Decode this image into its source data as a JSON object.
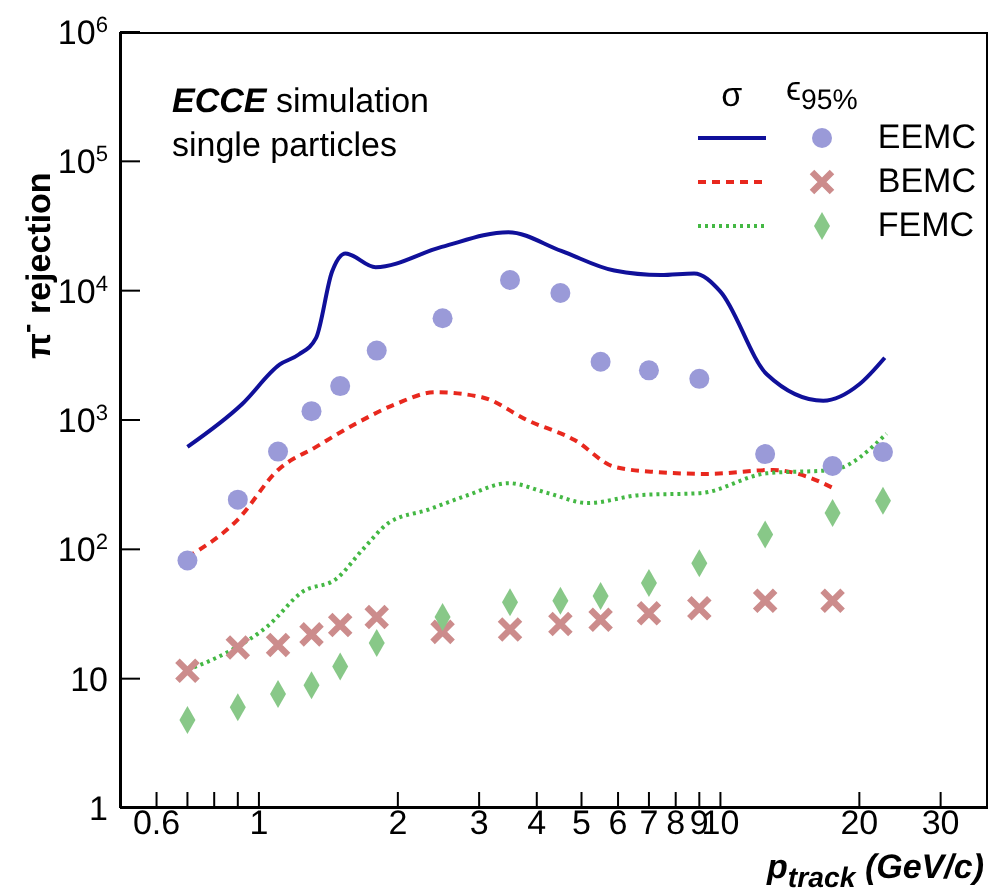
{
  "chart_data": {
    "type": "line",
    "xlabel": "p$_{track}$ (GeV/c)",
    "ylabel": "π$^{-}$ rejection",
    "annotations": [
      "ECCE simulation",
      "single particles",
      "σ",
      "ϵ$_{95%}$"
    ],
    "log": "xy",
    "grid": false,
    "legend": "top right",
    "xlim": [
      0.5,
      38
    ],
    "xticks": [
      0.6,
      {
        "value": 0.7,
        "label": null
      },
      {
        "value": 0.8,
        "label": null
      },
      {
        "value": 0.9,
        "label": null
      },
      1,
      2,
      3,
      4,
      5,
      6,
      7,
      8,
      9,
      10,
      20,
      30
    ],
    "ylim": [
      1,
      1000000
    ],
    "yticks": [
      1,
      10,
      {
        "value": 100,
        "label": "10$^{2}$"
      },
      {
        "value": 1000,
        "label": "10$^{3}$"
      },
      {
        "value": 10000,
        "label": "10$^{4}$"
      },
      {
        "value": 100000,
        "label": "10$^{5}$"
      },
      {
        "value": 1000000,
        "label": "10$^{6}$"
      }
    ],
    "series": [
      {
        "color": "#10109a",
        "line_style": "solid",
        "marker": "none",
        "x": [
          0.7,
          0.92,
          1.11,
          1.22,
          1.33,
          1.44,
          1.54,
          1.79,
          2.49,
          3.47,
          4.52,
          5.89,
          7.43,
          8.77,
          10,
          12.6,
          16.7,
          20,
          22.7
        ],
        "values": [
          620,
          1330,
          2690,
          3210,
          4310,
          14000,
          19400,
          15200,
          21800,
          28300,
          20300,
          14300,
          13200,
          13600,
          9840,
          2260,
          1410,
          1890,
          3030
        ]
      },
      {
        "color": "#e8281e",
        "line_style": "dashed",
        "marker": "none",
        "x": [
          0.7,
          0.9,
          1.1,
          1.33,
          1.62,
          1.98,
          2.41,
          3.04,
          3.83,
          4.83,
          5.89,
          7.16,
          9.36,
          13,
          15.4,
          17.5
        ],
        "values": [
          87,
          170,
          411,
          620,
          935,
          1330,
          1640,
          1500,
          990,
          700,
          435,
          397,
          383,
          411,
          365,
          299
        ]
      },
      {
        "color": "#44b844",
        "line_style": "dotted",
        "marker": "none",
        "x": [
          0.7,
          0.86,
          1.05,
          1.24,
          1.47,
          1.68,
          1.91,
          2.33,
          2.84,
          3.47,
          4.23,
          5.16,
          6.71,
          9.04,
          12.6,
          17.5,
          22.9
        ],
        "values": [
          11.7,
          16.2,
          25.9,
          46.7,
          59,
          100,
          160,
          203,
          263,
          325,
          272,
          228,
          263,
          272,
          387,
          411,
          784
        ]
      },
      {
        "name": "EEMC",
        "type": "scatter",
        "color": "#9a9ad8",
        "marker": "circle",
        "x": [
          0.7,
          0.9,
          1.1,
          1.3,
          1.5,
          1.8,
          2.5,
          3.5,
          4.5,
          5.5,
          7,
          9,
          12.5,
          17.5,
          22.5
        ],
        "values": [
          82,
          242,
          570,
          1170,
          1830,
          3440,
          6120,
          12100,
          9600,
          2820,
          2420,
          2080,
          545,
          441,
          565
        ]
      },
      {
        "name": "BEMC",
        "type": "scatter",
        "color": "#cc8c8c",
        "marker": "cross",
        "x": [
          0.7,
          0.9,
          1.1,
          1.3,
          1.5,
          1.8,
          2.5,
          3.5,
          4.5,
          5.5,
          7,
          9,
          12.5,
          17.5
        ],
        "values": [
          11.5,
          17.4,
          18.2,
          22,
          26,
          30,
          23,
          24,
          26.5,
          28.5,
          32,
          35,
          40,
          40
        ]
      },
      {
        "name": "FEMC",
        "type": "scatter",
        "color": "#88c888",
        "marker": "diamond",
        "x": [
          0.7,
          0.9,
          1.1,
          1.3,
          1.5,
          1.8,
          2.5,
          3.5,
          4.5,
          5.5,
          7,
          9,
          12.5,
          17.5,
          22.5
        ],
        "values": [
          4.8,
          6,
          7.6,
          8.9,
          12.4,
          18.9,
          30,
          39,
          40,
          43.5,
          55,
          78,
          130,
          191,
          237
        ]
      }
    ]
  }
}
